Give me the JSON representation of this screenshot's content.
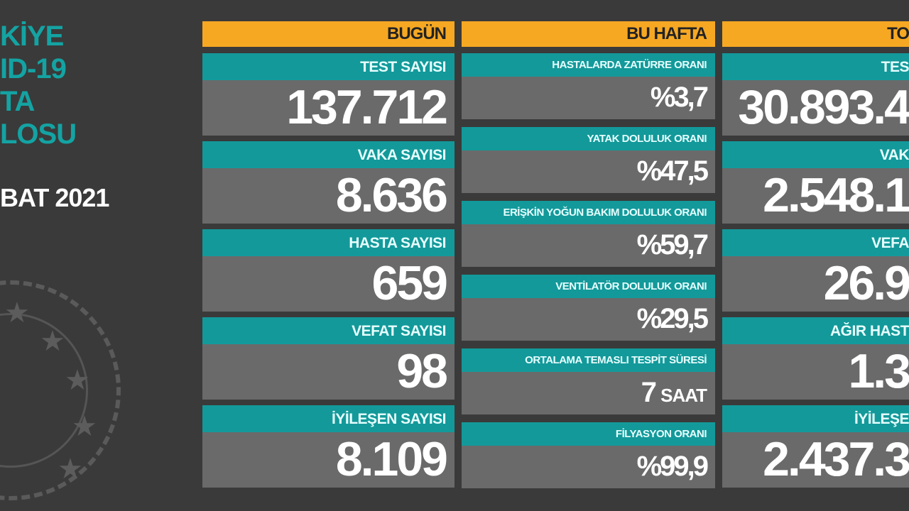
{
  "title_lines": [
    "KİYE",
    "ID-19",
    "TA",
    "LOSU"
  ],
  "date": "BAT 2021",
  "colors": {
    "header": "#f6a823",
    "label": "#13999a",
    "value_bg": "#6a6a6a",
    "background": "#3a3a3a"
  },
  "today": {
    "header": "BUGÜN",
    "items": [
      {
        "label": "TEST SAYISI",
        "value": "137.712"
      },
      {
        "label": "VAKA SAYISI",
        "value": "8.636"
      },
      {
        "label": "HASTA SAYISI",
        "value": "659"
      },
      {
        "label": "VEFAT SAYISI",
        "value": "98"
      },
      {
        "label": "İYİLEŞEN SAYISI",
        "value": "8.109"
      }
    ]
  },
  "week": {
    "header": "BU HAFTA",
    "items": [
      {
        "label": "HASTALARDA ZATÜRRE ORANI",
        "value": "%3,7",
        "unit": ""
      },
      {
        "label": "YATAK DOLULUK ORANI",
        "value": "%47,5",
        "unit": ""
      },
      {
        "label": "ERİŞKİN YOĞUN BAKIM DOLULUK ORANI",
        "value": "%59,7",
        "unit": ""
      },
      {
        "label": "VENTİLATÖR DOLULUK ORANI",
        "value": "%29,5",
        "unit": ""
      },
      {
        "label": "ORTALAMA TEMASLI TESPİT SÜRESİ",
        "value": "7",
        "unit": "SAAT"
      },
      {
        "label": "FİLYASYON ORANI",
        "value": "%99,9",
        "unit": ""
      }
    ]
  },
  "total": {
    "header": "TO",
    "items": [
      {
        "label": "TES",
        "value": "30.893.4"
      },
      {
        "label": "VAK",
        "value": "2.548.1"
      },
      {
        "label": "VEFA",
        "value": "26.9"
      },
      {
        "label": "AĞIR HAST",
        "value": "1.3"
      },
      {
        "label": "İYİLEŞE",
        "value": "2.437.3"
      }
    ]
  }
}
